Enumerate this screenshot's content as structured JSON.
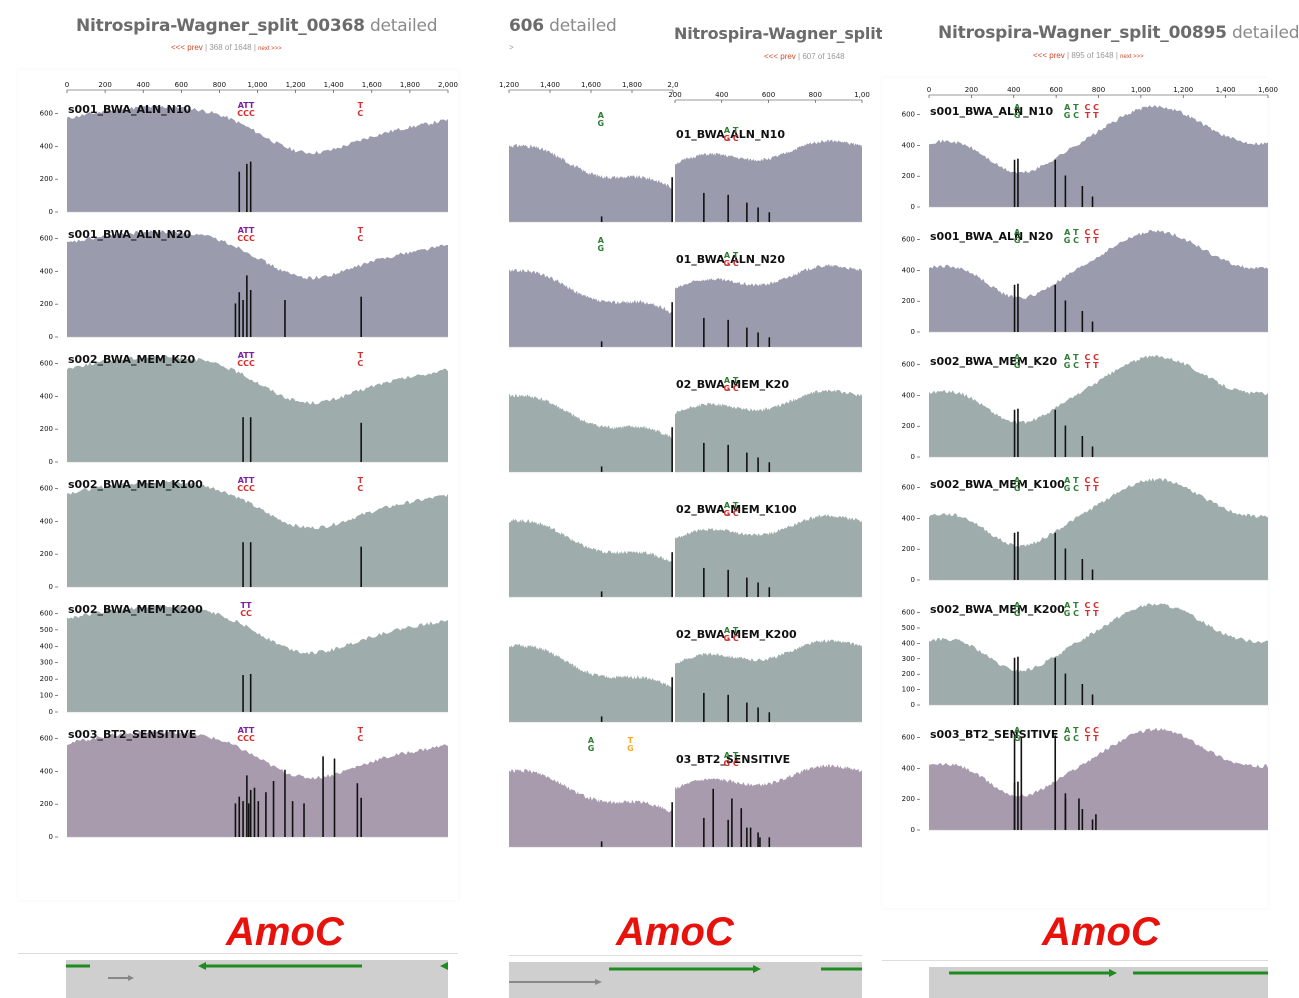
{
  "panels": [
    {
      "title_split": "Nitrospira-Wagner_split_00368",
      "title_detail": "detailed",
      "nav_prev": "<<< prev",
      "nav_pos": "| 368 of 1648 |",
      "nav_next": "next >>>",
      "x_ticks": [
        "0",
        "200",
        "400",
        "600",
        "800",
        "1,000",
        "1,200",
        "1,400",
        "1,600",
        "1,800",
        "2,000"
      ],
      "gene_label": "AmoC"
    },
    {
      "title_split": "606",
      "title_detail": "detailed",
      "nav_prev": "<<< prev",
      "nav_pos": "| 607 of 1648",
      "nav_next": ">",
      "x_ticks_a": [
        "1,200",
        "1,400",
        "1,600",
        "1,800",
        "2,0"
      ],
      "x_ticks_b": [
        "200",
        "400",
        "600",
        "800",
        "1,00"
      ],
      "overlay_title": "Nitrospira-Wagner_split",
      "gene_label": "AmoC"
    },
    {
      "title_split": "Nitrospira-Wagner_split_00895",
      "title_detail": "detailed",
      "nav_prev": "<<< prev",
      "nav_pos": "| 895 of 1648 |",
      "nav_next": "next >>>",
      "x_ticks": [
        "0",
        "200",
        "400",
        "600",
        "800",
        "1,000",
        "1,200",
        "1,400",
        "1,600"
      ],
      "gene_label": "AmoC"
    }
  ],
  "samples": [
    {
      "name": "s001_BWA_ALN_N10",
      "short": "01_BWA_ALN_N10",
      "color": "#9a9cae"
    },
    {
      "name": "s001_BWA_ALN_N20",
      "short": "01_BWA_ALN_N20",
      "color": "#9a9cae"
    },
    {
      "name": "s002_BWA_MEM_K20",
      "short": "02_BWA_MEM_K20",
      "color": "#9eadab"
    },
    {
      "name": "s002_BWA_MEM_K100",
      "short": "02_BWA_MEM_K100",
      "color": "#9eadab"
    },
    {
      "name": "s002_BWA_MEM_K200",
      "short": "02_BWA_MEM_K200",
      "color": "#9eadab"
    },
    {
      "name": "s003_BT2_SENSITIVE",
      "short": "03_BT2_SENSITIVE",
      "color": "#a89bad"
    }
  ],
  "y_ticks": {
    "standard": [
      "0",
      "200",
      "400",
      "600"
    ],
    "k200": [
      "0",
      "100",
      "200",
      "300",
      "400",
      "500",
      "600"
    ]
  },
  "snp_labels": {
    "p1": [
      {
        "top": "ATT",
        "bot": "CCC",
        "ct": "#7b1fa2",
        "cb": "#d32f2f"
      },
      {
        "top": "T",
        "bot": "C",
        "ct": "#d32f2f",
        "cb": "#d32f2f"
      }
    ],
    "p2": [
      {
        "top": "A",
        "bot": "G",
        "ct": "#2e7d32",
        "cb": "#2e7d32"
      },
      {
        "top": "T",
        "bot": "G",
        "ct": "#f9a825",
        "cb": "#f9a825"
      }
    ],
    "p3": [
      {
        "top": "A T",
        "bot": "G C",
        "ct": "#2e7d32",
        "cb": "#2e7d32"
      },
      {
        "top": "C C",
        "bot": "T T",
        "ct": "#d32f2f",
        "cb": "#d32f2f"
      }
    ]
  }
}
